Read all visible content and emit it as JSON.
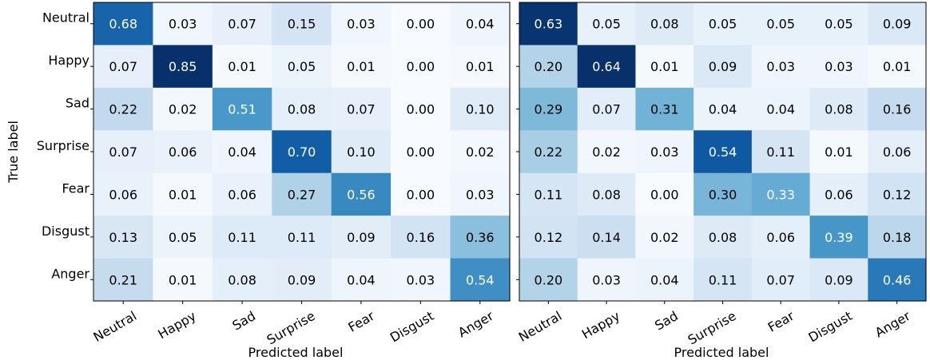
{
  "chart_data": [
    {
      "type": "heatmap",
      "title": "",
      "xlabel": "Predicted label",
      "ylabel": "True label",
      "x_categories": [
        "Neutral",
        "Happy",
        "Sad",
        "Surprise",
        "Fear",
        "Disgust",
        "Anger"
      ],
      "y_categories": [
        "Neutral",
        "Happy",
        "Sad",
        "Surprise",
        "Fear",
        "Disgust",
        "Anger"
      ],
      "values": [
        [
          0.68,
          0.03,
          0.07,
          0.15,
          0.03,
          0.0,
          0.04
        ],
        [
          0.07,
          0.85,
          0.01,
          0.05,
          0.01,
          0.0,
          0.01
        ],
        [
          0.22,
          0.02,
          0.51,
          0.08,
          0.07,
          0.0,
          0.1
        ],
        [
          0.07,
          0.06,
          0.04,
          0.7,
          0.1,
          0.0,
          0.02
        ],
        [
          0.06,
          0.01,
          0.06,
          0.27,
          0.56,
          0.0,
          0.03
        ],
        [
          0.13,
          0.05,
          0.11,
          0.11,
          0.09,
          0.16,
          0.36
        ],
        [
          0.21,
          0.01,
          0.08,
          0.09,
          0.04,
          0.03,
          0.54
        ]
      ],
      "colormap": "Blues",
      "grid": false
    },
    {
      "type": "heatmap",
      "title": "",
      "xlabel": "Predicted label",
      "ylabel": "",
      "x_categories": [
        "Neutral",
        "Happy",
        "Sad",
        "Surprise",
        "Fear",
        "Disgust",
        "Anger"
      ],
      "y_categories": [],
      "values": [
        [
          0.63,
          0.05,
          0.08,
          0.05,
          0.05,
          0.05,
          0.09
        ],
        [
          0.2,
          0.64,
          0.01,
          0.09,
          0.03,
          0.03,
          0.01
        ],
        [
          0.29,
          0.07,
          0.31,
          0.04,
          0.04,
          0.08,
          0.16
        ],
        [
          0.22,
          0.02,
          0.03,
          0.54,
          0.11,
          0.01,
          0.06
        ],
        [
          0.11,
          0.08,
          0.0,
          0.3,
          0.33,
          0.06,
          0.12
        ],
        [
          0.12,
          0.14,
          0.02,
          0.08,
          0.06,
          0.39,
          0.18
        ],
        [
          0.2,
          0.03,
          0.04,
          0.11,
          0.07,
          0.09,
          0.46
        ]
      ],
      "colormap": "Blues",
      "grid": false
    }
  ]
}
